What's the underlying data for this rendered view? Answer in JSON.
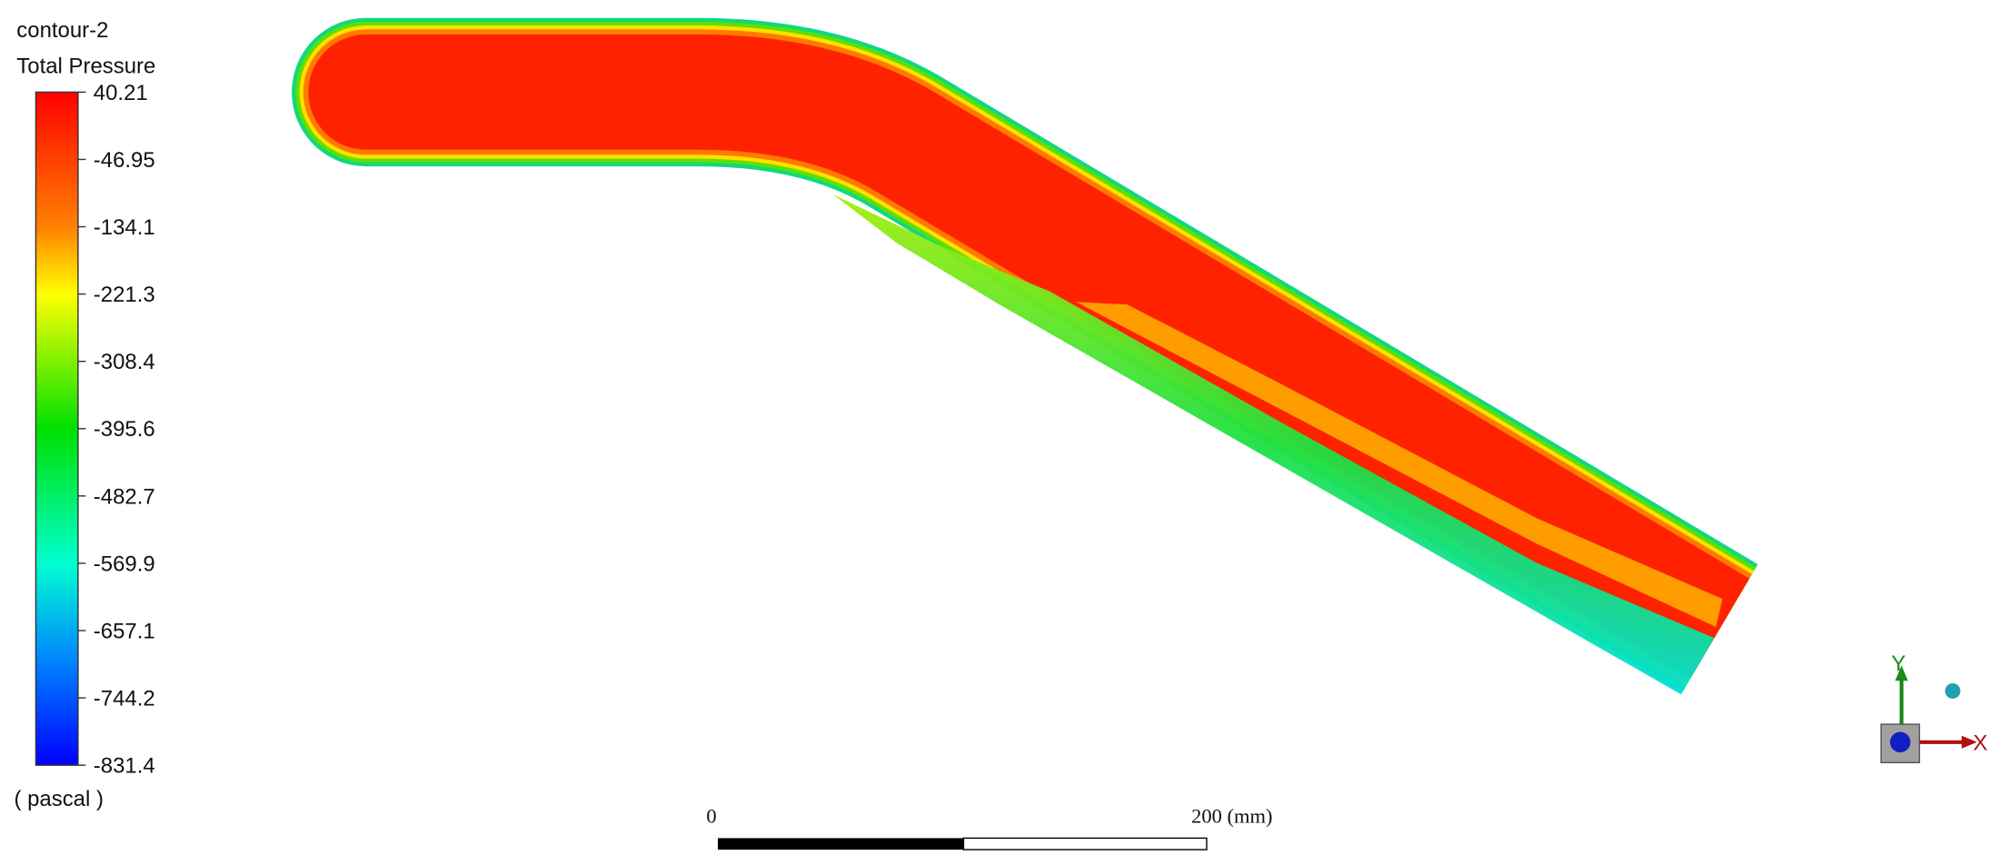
{
  "legend": {
    "title": "contour-2",
    "variable": "Total Pressure",
    "levels": [
      40.21,
      -46.95,
      -134.1,
      -221.3,
      -308.4,
      -395.6,
      -482.7,
      -569.9,
      -657.1,
      -744.2,
      -831.4
    ],
    "units": "( pascal )"
  },
  "scale_bar": {
    "start": "0",
    "end": "200 (mm)"
  },
  "triad": {
    "y": "Y",
    "x": "X"
  }
}
